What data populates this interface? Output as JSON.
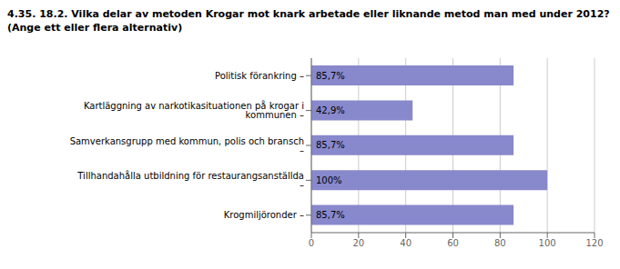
{
  "chart_data": {
    "type": "bar",
    "orientation": "horizontal",
    "title": "4.35. 18.2. Vilka delar av metoden Krogar mot knark arbetade eller liknande metod man med under 2012?",
    "subtitle": "(Ange ett eller flera alternativ)",
    "categories": [
      "Krogmiljöronder –",
      "Tillhandahålla utbildning för restaurangsanställda –",
      "Samverkansgrupp med kommun, polis och bransch –",
      "Kartläggning av narkotikasituationen på krogar i kommunen –",
      "Politisk förankring –"
    ],
    "values": [
      85.7,
      100.0,
      85.7,
      42.9,
      85.7
    ],
    "value_labels": [
      "85,7%",
      "100%",
      "85,7%",
      "42,9%",
      "85,7%"
    ],
    "data_labels": true,
    "color": "#8888cc",
    "xlim": [
      0,
      120
    ],
    "xticks": [
      0,
      20,
      40,
      60,
      80,
      100,
      120
    ],
    "grid": true
  }
}
